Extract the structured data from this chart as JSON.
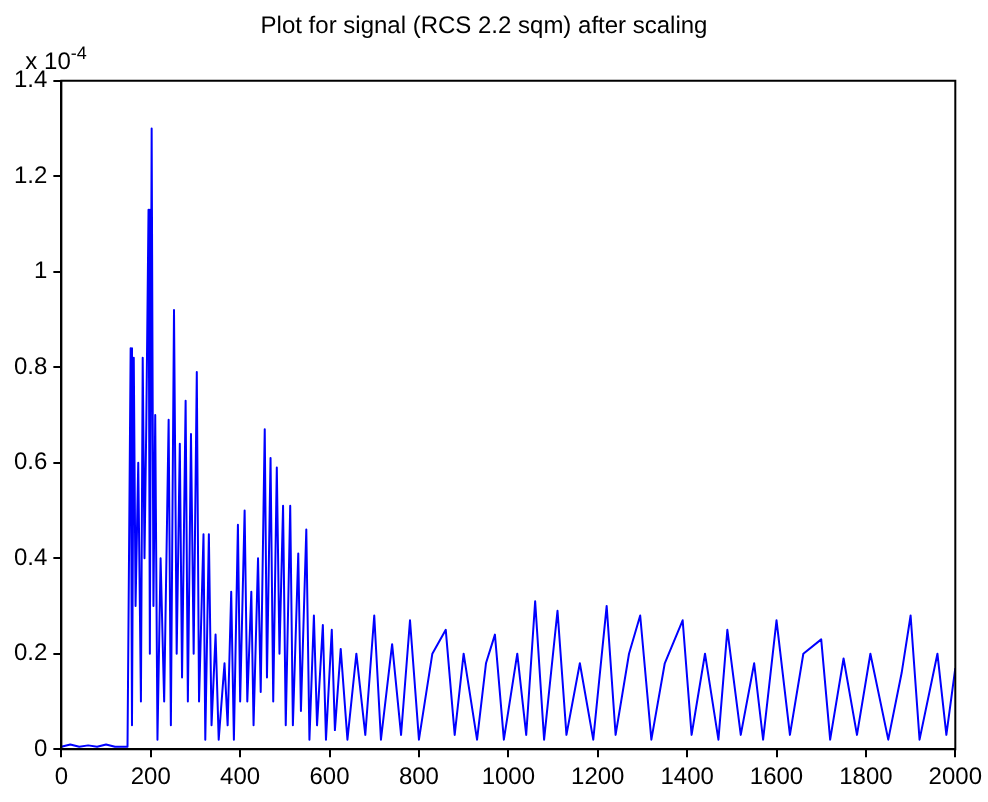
{
  "chart_data": {
    "type": "line",
    "title": "Plot for signal (RCS 2.2 sqm) after scaling",
    "annotations": [
      "x 10$^{-4}$"
    ],
    "color": "#0000ff",
    "grid": false,
    "marker": "none",
    "legend": false,
    "x": [
      0,
      20,
      40,
      60,
      80,
      100,
      120,
      148,
      152,
      155,
      158,
      162,
      166,
      172,
      178,
      182,
      186,
      190,
      195,
      198,
      202,
      206,
      210,
      215,
      222,
      230,
      240,
      245,
      252,
      258,
      265,
      270,
      278,
      283,
      290,
      296,
      303,
      308,
      318,
      322,
      330,
      336,
      345,
      352,
      365,
      372,
      380,
      386,
      395,
      400,
      410,
      416,
      425,
      430,
      440,
      446,
      455,
      460,
      468,
      474,
      482,
      488,
      496,
      502,
      512,
      518,
      530,
      536,
      548,
      555,
      565,
      572,
      585,
      592,
      605,
      612,
      625,
      640,
      660,
      680,
      700,
      715,
      740,
      760,
      780,
      800,
      830,
      860,
      880,
      900,
      930,
      950,
      970,
      990,
      1020,
      1040,
      1060,
      1080,
      1110,
      1130,
      1160,
      1190,
      1220,
      1240,
      1270,
      1295,
      1320,
      1350,
      1390,
      1410,
      1440,
      1470,
      1490,
      1520,
      1550,
      1570,
      1600,
      1630,
      1660,
      1700,
      1720,
      1750,
      1780,
      1810,
      1850,
      1880,
      1900,
      1920,
      1960,
      1980,
      2000
    ],
    "values": [
      0.005,
      0.01,
      0.005,
      0.008,
      0.005,
      0.01,
      0.005,
      0.005,
      0.48,
      0.84,
      0.05,
      0.82,
      0.3,
      0.6,
      0.1,
      0.82,
      0.4,
      0.68,
      1.13,
      0.2,
      1.3,
      0.3,
      0.7,
      0.02,
      0.4,
      0.1,
      0.69,
      0.05,
      0.92,
      0.2,
      0.64,
      0.15,
      0.73,
      0.1,
      0.66,
      0.2,
      0.79,
      0.1,
      0.45,
      0.02,
      0.45,
      0.05,
      0.24,
      0.02,
      0.18,
      0.05,
      0.33,
      0.02,
      0.47,
      0.1,
      0.5,
      0.1,
      0.33,
      0.05,
      0.4,
      0.12,
      0.67,
      0.15,
      0.61,
      0.1,
      0.59,
      0.2,
      0.51,
      0.05,
      0.51,
      0.05,
      0.41,
      0.08,
      0.46,
      0.02,
      0.28,
      0.05,
      0.26,
      0.02,
      0.25,
      0.04,
      0.21,
      0.02,
      0.2,
      0.03,
      0.28,
      0.02,
      0.22,
      0.03,
      0.27,
      0.02,
      0.2,
      0.25,
      0.03,
      0.2,
      0.02,
      0.18,
      0.24,
      0.02,
      0.2,
      0.03,
      0.31,
      0.02,
      0.29,
      0.03,
      0.18,
      0.02,
      0.3,
      0.03,
      0.2,
      0.28,
      0.02,
      0.18,
      0.27,
      0.03,
      0.2,
      0.02,
      0.25,
      0.03,
      0.18,
      0.02,
      0.27,
      0.03,
      0.2,
      0.23,
      0.02,
      0.19,
      0.03,
      0.2,
      0.02,
      0.16,
      0.28,
      0.02,
      0.2,
      0.03,
      0.17
    ],
    "xlim": [
      0,
      2000
    ],
    "xticks": [
      0,
      200,
      400,
      600,
      800,
      1000,
      1200,
      1400,
      1600,
      1800,
      2000
    ],
    "ylim": [
      0,
      1.4
    ],
    "yticks": [
      0,
      0.2,
      0.4,
      0.6,
      0.8,
      1,
      1.2,
      1.4
    ]
  }
}
